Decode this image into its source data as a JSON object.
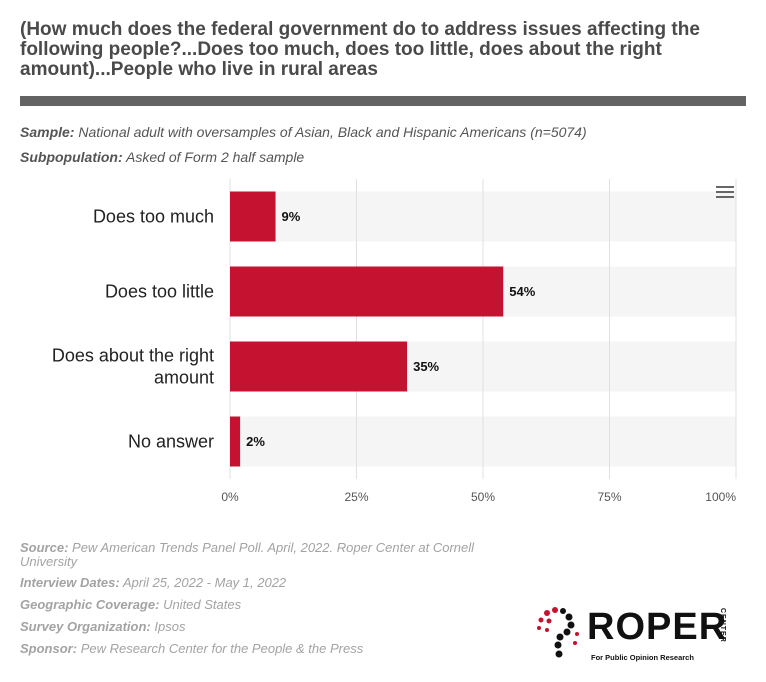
{
  "title": "(How much does the federal government do to address issues affecting the following people?...Does too much, does too little, does about the right amount)...People who live in rural areas",
  "sample": {
    "label": "Sample:",
    "text": "National adult with oversamples of Asian, Black and Hispanic Americans (n=5074)"
  },
  "subpopulation": {
    "label": "Subpopulation:",
    "text": "Asked of Form 2 half sample"
  },
  "chart_data": {
    "type": "bar",
    "orientation": "horizontal",
    "categories": [
      "Does too much",
      "Does too little",
      "Does about the right amount",
      "No answer"
    ],
    "category_lines": [
      [
        "Does too much"
      ],
      [
        "Does too little"
      ],
      [
        "Does about the right",
        "amount"
      ],
      [
        "No answer"
      ]
    ],
    "values": [
      9,
      54,
      35,
      2
    ],
    "value_labels": [
      "9%",
      "54%",
      "35%",
      "2%"
    ],
    "xlim": [
      0,
      100
    ],
    "ticks": [
      0,
      25,
      50,
      75,
      100
    ],
    "tick_labels": [
      "0%",
      "25%",
      "50%",
      "75%",
      "100%"
    ],
    "grid": true,
    "colors": {
      "bar": "#c41230",
      "band": "#f5f5f5",
      "grid": "#e0e0e0"
    }
  },
  "menu_icon": "hamburger-menu-icon",
  "footer": [
    {
      "label": "Source:",
      "text": "Pew American Trends Panel Poll. April, 2022. Roper Center at Cornell",
      "text2": "University"
    },
    {
      "label": "Interview Dates:",
      "text": "April 25, 2022 - May 1, 2022"
    },
    {
      "label": "Geographic Coverage:",
      "text": "United States"
    },
    {
      "label": "Survey Organization:",
      "text": "Ipsos"
    },
    {
      "label": "Sponsor:",
      "text": "Pew Research Center for the People & the Press"
    }
  ],
  "logo": {
    "word": "ROPER",
    "center": "CENTER",
    "tagline": "For Public Opinion Research"
  }
}
